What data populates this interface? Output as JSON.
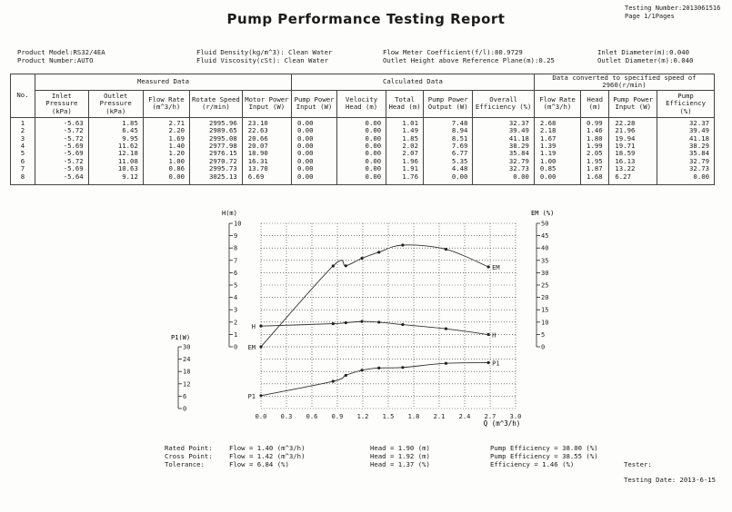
{
  "header": {
    "title": "Pump Performance Testing Report",
    "testing_number": "Testing Number:2013061516",
    "page": "Page 1/1Pages"
  },
  "info": {
    "product_model": "Product Model:RS32/4EA",
    "product_number": "Product Number:AUTO",
    "fluid_density": "Fluid Density(kg/m^3): Clean Water",
    "fluid_viscosity": "Fluid Viscosity(cSt): Clean Water",
    "flow_meter": "Flow Meter Coefficient(f/l):80.9729",
    "outlet_height": "Outlet Height above Reference Plane(m):0.25",
    "inlet_diameter": "Inlet Diameter(m):0.040",
    "outlet_diameter": "Outlet Diameter(m):0.040"
  },
  "table": {
    "group_measured": "Measured Data",
    "group_calculated": "Calculated Data",
    "group_converted": "Data converted to specified speed of 2960(r/min)",
    "col_no": "No.",
    "col_inlet": "Inlet\nPressure\n(kPa)",
    "col_outlet": "Outlet\nPressure\n(kPa)",
    "col_flow": "Flow Rate\n\n(m^3/h)",
    "col_speed": "Rotate\nSpeed\n(r/min)",
    "col_motor": "Motor Power\nInput\n(W)",
    "col_pumpin": "Pump Power\nInput\n(W)",
    "col_velhead": "Velocity\nHead\n(m)",
    "col_tothead": "Total\nHead\n(m)",
    "col_pumpout": "Pump Power\nOutput\n(W)",
    "col_overall": "Overall\nEfficiency\n(%)",
    "col_cflow": "Flow Rate\n\n(m^3/h)",
    "col_chead": "Head\n\n(m)",
    "col_cpower": "Pump Power\nInput\n(W)",
    "col_ceff": "Pump\nEfficiency\n(%)",
    "no": "1\n2\n3\n4\n5\n6\n7\n8",
    "inlet": "-5.63\n-5.72\n-5.72\n-5.69\n-5.69\n-5.72\n-5.69\n-5.64",
    "outlet": "1.85\n6.45\n9.95\n11.62\n12.18\n11.08\n10.63\n9.12",
    "flow": "2.71\n2.20\n1.69\n1.40\n1.20\n1.00\n0.86\n0.00",
    "speed": "2995.96\n2989.65\n2995.08\n2977.98\n2976.15\n2970.72\n2995.73\n3025.13",
    "motor": "23.10\n22.63\n20.66\n20.07\n18.90\n16.31\n13.70\n6.69",
    "pumpin": "0.00\n0.00\n0.00\n0.00\n0.00\n0.00\n0.00\n0.00",
    "velhead": "0.00\n0.00\n0.00\n0.00\n0.00\n0.00\n0.00\n0.00",
    "tothead": "1.01\n1.49\n1.85\n2.02\n2.07\n1.96\n1.91\n1.76",
    "pumpout": "7.48\n8.94\n8.51\n7.69\n6.77\n5.35\n4.48\n0.00",
    "overall": "32.37\n39.49\n41.18\n38.29\n35.84\n32.79\n32.73\n0.00",
    "cflow": "2.68\n2.18\n1.67\n1.39\n1.19\n1.00\n0.85\n0.00",
    "chead": "0.99\n1.46\n1.80\n1.99\n2.05\n1.95\n1.87\n1.68",
    "cpower": "22.28\n21.96\n19.94\n19.71\n18.59\n16.13\n13.22\n6.27",
    "ceff": "32.37\n39.49\n41.18\n38.29\n35.84\n32.79\n32.73\n0.00"
  },
  "chart_data": {
    "type": "line",
    "xlabel": "Q (m^3/h)",
    "xlim": [
      0,
      3.0
    ],
    "x_ticks": [
      "0.0",
      "0.3",
      "0.6",
      "0.9",
      "1.2",
      "1.5",
      "1.8",
      "2.1",
      "2.4",
      "2.7",
      "3.0"
    ],
    "h_axis": {
      "label": "H(m)",
      "ylim": [
        0,
        10
      ],
      "ticks": [
        "0",
        "1",
        "2",
        "3",
        "4",
        "5",
        "6",
        "7",
        "8",
        "9",
        "10"
      ]
    },
    "em_axis": {
      "label": "EM (%)",
      "ylim": [
        0,
        50
      ],
      "ticks": [
        "0",
        "5",
        "10",
        "15",
        "20",
        "25",
        "30",
        "35",
        "40",
        "45",
        "50"
      ]
    },
    "p1_axis": {
      "label": "P1(W)",
      "ylim": [
        0,
        30
      ],
      "ticks": [
        "0",
        "6",
        "12",
        "18",
        "24",
        "30"
      ]
    },
    "series": [
      {
        "name": "H",
        "axis": "h",
        "x": [
          0.0,
          0.85,
          1.0,
          1.19,
          1.39,
          1.67,
          2.18,
          2.68
        ],
        "y": [
          1.68,
          1.87,
          1.95,
          2.05,
          1.99,
          1.8,
          1.46,
          0.99
        ]
      },
      {
        "name": "EM",
        "axis": "em",
        "x": [
          0.0,
          0.85,
          1.0,
          1.19,
          1.39,
          1.67,
          2.18,
          2.68
        ],
        "y": [
          0.0,
          32.73,
          32.79,
          35.84,
          38.29,
          41.18,
          39.49,
          32.37
        ]
      },
      {
        "name": "P1",
        "axis": "p1",
        "x": [
          0.0,
          0.85,
          1.0,
          1.19,
          1.39,
          1.67,
          2.18,
          2.68
        ],
        "y": [
          6.27,
          13.22,
          16.13,
          18.59,
          19.71,
          19.94,
          21.96,
          22.28
        ]
      }
    ],
    "grid": true
  },
  "footer": {
    "rated_label": "Rated Point:",
    "cross_label": "Cross Point:",
    "tolerance_label": "Tolerance:",
    "rated_flow": "Flow = 1.40 (m^3/h)",
    "cross_flow": "Flow = 1.42 (m^3/h)",
    "tolerance_flow": "Flow = 6.84 (%)",
    "rated_head": "Head = 1.90 (m)",
    "cross_head": "Head = 1.92 (m)",
    "tolerance_head": "Head = 1.37 (%)",
    "rated_eff": "Pump Efficiency = 38.00 (%)",
    "cross_eff": "Pump Efficiency = 38.55 (%)",
    "tolerance_eff": "Efficiency = 1.46 (%)",
    "tester": "Tester:",
    "testing_date": "Testing Date: 2013-6-15"
  }
}
